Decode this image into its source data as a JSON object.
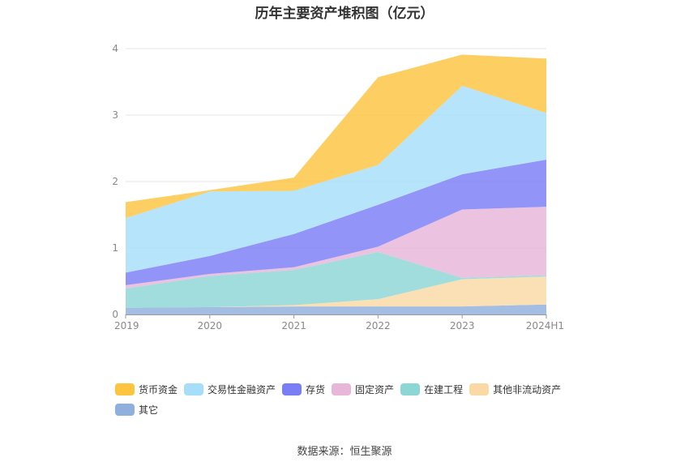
{
  "title": "历年主要资产堆积图（亿元）",
  "source": "数据来源：恒生聚源",
  "chart_data": {
    "type": "area",
    "stacked": true,
    "categories": [
      "2019",
      "2020",
      "2021",
      "2022",
      "2023",
      "2024H1"
    ],
    "y_ticks": [
      "0",
      "1",
      "2",
      "3",
      "4"
    ],
    "ylim": [
      0,
      4
    ],
    "grid": true,
    "legend_position": "bottom",
    "series": [
      {
        "name": "其它",
        "color": "#8fb0dc",
        "values": [
          0.1,
          0.11,
          0.12,
          0.12,
          0.12,
          0.15
        ]
      },
      {
        "name": "其他非流动资产",
        "color": "#fbd9a5",
        "values": [
          0.0,
          0.0,
          0.02,
          0.11,
          0.41,
          0.42
        ]
      },
      {
        "name": "在建工程",
        "color": "#8dd6d6",
        "values": [
          0.29,
          0.47,
          0.53,
          0.71,
          0.02,
          0.02
        ]
      },
      {
        "name": "固定资产",
        "color": "#e7b6d9",
        "values": [
          0.05,
          0.03,
          0.04,
          0.08,
          1.03,
          1.03
        ]
      },
      {
        "name": "存货",
        "color": "#7a7ef5",
        "values": [
          0.19,
          0.27,
          0.5,
          0.63,
          0.53,
          0.71
        ]
      },
      {
        "name": "交易性金融资产",
        "color": "#a6defa",
        "values": [
          0.82,
          0.97,
          0.65,
          0.6,
          1.33,
          0.7
        ]
      },
      {
        "name": "货币资金",
        "color": "#fdc43f",
        "values": [
          0.24,
          0.02,
          0.2,
          1.32,
          0.47,
          0.82
        ]
      }
    ]
  }
}
